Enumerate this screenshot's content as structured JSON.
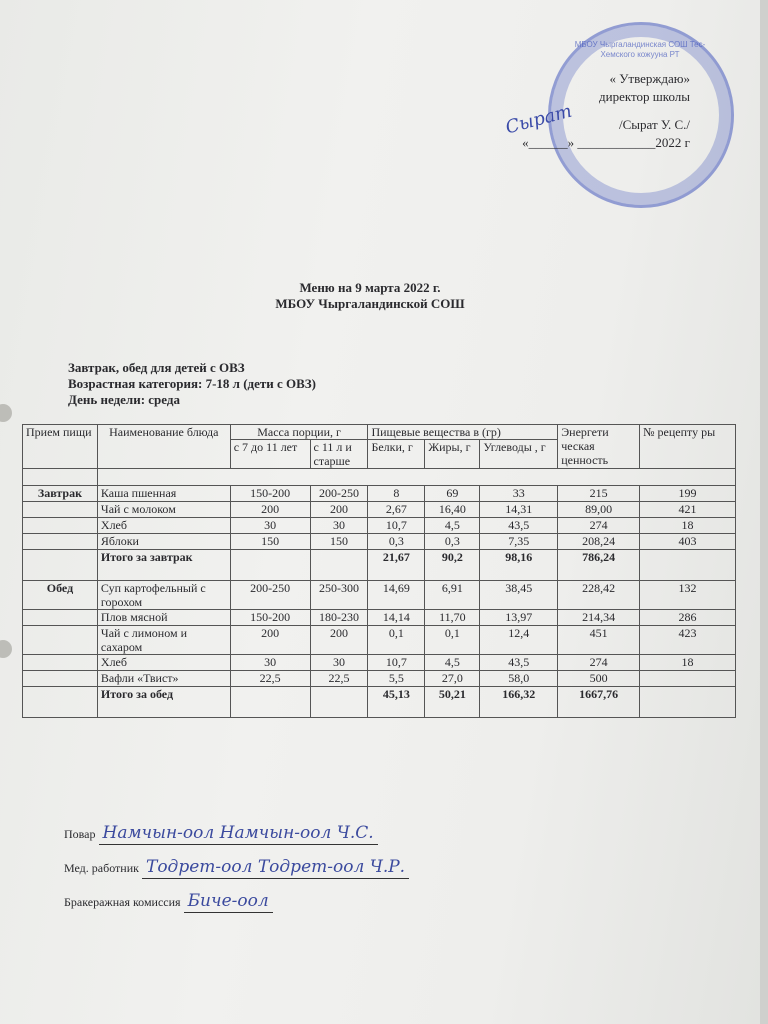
{
  "approval": {
    "line1": "« Утверждаю»",
    "line2": "директор школы",
    "line3": "/Сырат У. С./",
    "line4": "«______» ____________2022 г",
    "stamp_text": "МБОУ Чыргаландинская СОШ Тес-Хемского кожууна РТ",
    "signature": "Сырат"
  },
  "title": {
    "line1": "Меню  на 9 марта 2022 г.",
    "line2": "МБОУ Чыргаландинской СОШ"
  },
  "info": {
    "line1": "Завтрак, обед для детей с ОВЗ",
    "line2": "Возрастная категория: 7-18 л (дети с ОВЗ)",
    "line3": "День недели: среда"
  },
  "table": {
    "headers": {
      "meal": "Прием пищи",
      "dish": "Наименование блюда",
      "mass": "Масса порции, г",
      "mass_a": "с 7 до 11 лет",
      "mass_b": "с 11 л и старше",
      "nutrients": "Пищевые вещества в (гр)",
      "protein": "Белки, г",
      "fat": "Жиры, г",
      "carbs": "Углеводы , г",
      "energy": "Энергети ческая ценность",
      "recipe": "№ рецепту ры"
    },
    "rows": [
      {
        "meal": "Завтрак",
        "dish": "Каша пшенная",
        "a": "150-200",
        "b": "200-250",
        "p": "8",
        "f": "69",
        "c": "33",
        "e": "215",
        "n": "199"
      },
      {
        "meal": "",
        "dish": "Чай с молоком",
        "a": "200",
        "b": "200",
        "p": "2,67",
        "f": "16,40",
        "c": "14,31",
        "e": "89,00",
        "n": "421"
      },
      {
        "meal": "",
        "dish": "Хлеб",
        "a": "30",
        "b": "30",
        "p": "10,7",
        "f": "4,5",
        "c": "43,5",
        "e": "274",
        "n": "18"
      },
      {
        "meal": "",
        "dish": "Яблоки",
        "a": "150",
        "b": "150",
        "p": "0,3",
        "f": "0,3",
        "c": "7,35",
        "e": "208,24",
        "n": "403"
      },
      {
        "meal": "",
        "dish": "Итого за завтрак",
        "a": "",
        "b": "",
        "p": "21,67",
        "f": "90,2",
        "c": "98,16",
        "e": "786,24",
        "n": "",
        "total": true
      },
      {
        "meal": "Обед",
        "dish": "Суп картофельный с горохом",
        "a": "200-250",
        "b": "250-300",
        "p": "14,69",
        "f": "6,91",
        "c": "38,45",
        "e": "228,42",
        "n": "132"
      },
      {
        "meal": "",
        "dish": "Плов мясной",
        "a": "150-200",
        "b": "180-230",
        "p": "14,14",
        "f": "11,70",
        "c": "13,97",
        "e": "214,34",
        "n": "286"
      },
      {
        "meal": "",
        "dish": "Чай с лимоном и сахаром",
        "a": "200",
        "b": "200",
        "p": "0,1",
        "f": "0,1",
        "c": "12,4",
        "e": "451",
        "n": "423"
      },
      {
        "meal": "",
        "dish": "Хлеб",
        "a": "30",
        "b": "30",
        "p": "10,7",
        "f": "4,5",
        "c": "43,5",
        "e": "274",
        "n": "18"
      },
      {
        "meal": "",
        "dish": "Вафли «Твист»",
        "a": "22,5",
        "b": "22,5",
        "p": "5,5",
        "f": "27,0",
        "c": "58,0",
        "e": "500",
        "n": ""
      },
      {
        "meal": "",
        "dish": "Итого за обед",
        "a": "",
        "b": "",
        "p": "45,13",
        "f": "50,21",
        "c": "166,32",
        "e": "1667,76",
        "n": "",
        "total": true
      }
    ]
  },
  "signatures": [
    {
      "label": "Повар",
      "hand": "Намчын-оол Намчын-оол Ч.С."
    },
    {
      "label": "Мед. работник",
      "hand": "Тодрет-оол Тодрет-оол Ч.Р."
    },
    {
      "label": "Бракеражная комиссия",
      "hand": "Бичe-оол"
    }
  ],
  "colors": {
    "paper": "#eeeeec",
    "ink": "#2a2a2e",
    "stamp": "#4a5ab8"
  }
}
